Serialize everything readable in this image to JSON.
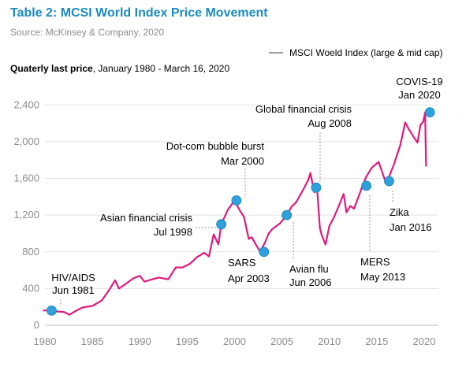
{
  "header": {
    "title": "Table 2: MCSI World Index Price Movement",
    "source": "Source: McKinsey & Company, 2020",
    "subtitle_bold": "Quaterly last price",
    "subtitle_rest": ", January 1980 - March 16, 2020"
  },
  "chart_data": {
    "type": "line",
    "title": "Table 2: MCSI World Index Price Movement",
    "subtitle": "Quaterly last price, January 1980 - March 16, 2020",
    "xlabel": "",
    "ylabel": "",
    "xlim": [
      1980,
      2021.5
    ],
    "ylim": [
      0,
      2600
    ],
    "x_ticks": [
      "1980",
      "1985",
      "1990",
      "1995",
      "2000",
      "2005",
      "2010",
      "2015",
      "2020"
    ],
    "x_tick_values": [
      1980,
      1985,
      1990,
      1995,
      2000,
      2005,
      2010,
      2015,
      2020
    ],
    "y_ticks": [
      "0",
      "400",
      "800",
      "1,200",
      "1,600",
      "2,000",
      "2,400"
    ],
    "y_tick_values": [
      0,
      400,
      800,
      1200,
      1600,
      2000,
      2400
    ],
    "grid": "horizontal",
    "legend_position": "top-right",
    "line_color": "#e0197d",
    "marker_color": "#2ea0dc",
    "series": [
      {
        "name": "MSCI Woeld Index (large & mid cap)",
        "x": [
          1979.8,
          1980.5,
          1981.3,
          1982.0,
          1982.6,
          1983.3,
          1984.0,
          1985.0,
          1986.0,
          1986.8,
          1987.4,
          1987.8,
          1988.5,
          1989.3,
          1990.0,
          1990.5,
          1991.3,
          1992.0,
          1993.0,
          1993.8,
          1994.5,
          1995.3,
          1996.0,
          1996.8,
          1997.3,
          1997.8,
          1998.3,
          1998.6,
          1999.3,
          2000.0,
          2000.5,
          2001.0,
          2001.5,
          2001.8,
          2002.3,
          2002.7,
          2003.2,
          2003.6,
          2004.0,
          2004.8,
          2005.5,
          2006.0,
          2006.5,
          2007.2,
          2007.8,
          2008.0,
          2008.4,
          2008.7,
          2009.0,
          2009.2,
          2009.6,
          2010.0,
          2010.5,
          2011.0,
          2011.5,
          2011.8,
          2012.2,
          2012.6,
          2013.0,
          2013.5,
          2013.9,
          2014.5,
          2015.2,
          2016.0,
          2016.3,
          2016.8,
          2017.5,
          2018.0,
          2018.3,
          2018.9,
          2019.3,
          2019.6,
          2019.9,
          2020.1,
          2020.15,
          2020.2
        ],
        "values": [
          160,
          165,
          150,
          145,
          115,
          160,
          195,
          210,
          270,
          390,
          490,
          400,
          450,
          510,
          540,
          475,
          500,
          520,
          500,
          630,
          630,
          670,
          740,
          790,
          750,
          990,
          880,
          1100,
          1260,
          1360,
          1260,
          1180,
          940,
          960,
          870,
          800,
          900,
          1000,
          1050,
          1110,
          1200,
          1290,
          1340,
          1470,
          1590,
          1660,
          1450,
          1500,
          1060,
          980,
          880,
          1080,
          1180,
          1300,
          1430,
          1230,
          1300,
          1270,
          1380,
          1520,
          1620,
          1720,
          1780,
          1540,
          1620,
          1750,
          1970,
          2210,
          2150,
          2050,
          1990,
          2180,
          2220,
          2320,
          2000,
          1730
        ]
      }
    ],
    "annotations": [
      {
        "label_line1": "HIV/AIDS",
        "label_line2": "Jun 1981",
        "x": 1980.7,
        "y": 160
      },
      {
        "label_line1": "Asian financial crisis",
        "label_line2": "Jul 1998",
        "x": 1998.6,
        "y": 1100
      },
      {
        "label_line1": "Dot-com bubble burst",
        "label_line2": "Mar 2000",
        "x": 2000.2,
        "y": 1360
      },
      {
        "label_line1": "SARS",
        "label_line2": "Apr 2003",
        "x": 2003.1,
        "y": 800
      },
      {
        "label_line1": "Avian flu",
        "label_line2": "Jun 2006",
        "x": 2005.5,
        "y": 1200
      },
      {
        "label_line1": "Global financial crisis",
        "label_line2": "Aug 2008",
        "x": 2008.6,
        "y": 1500
      },
      {
        "label_line1": "MERS",
        "label_line2": "May 2013",
        "x": 2013.9,
        "y": 1520
      },
      {
        "label_line1": "Zika",
        "label_line2": "Jan 2016",
        "x": 2016.3,
        "y": 1570
      },
      {
        "label_line1": "COVIS-19",
        "label_line2": "Jan 2020",
        "x": 2020.6,
        "y": 2320
      }
    ]
  }
}
